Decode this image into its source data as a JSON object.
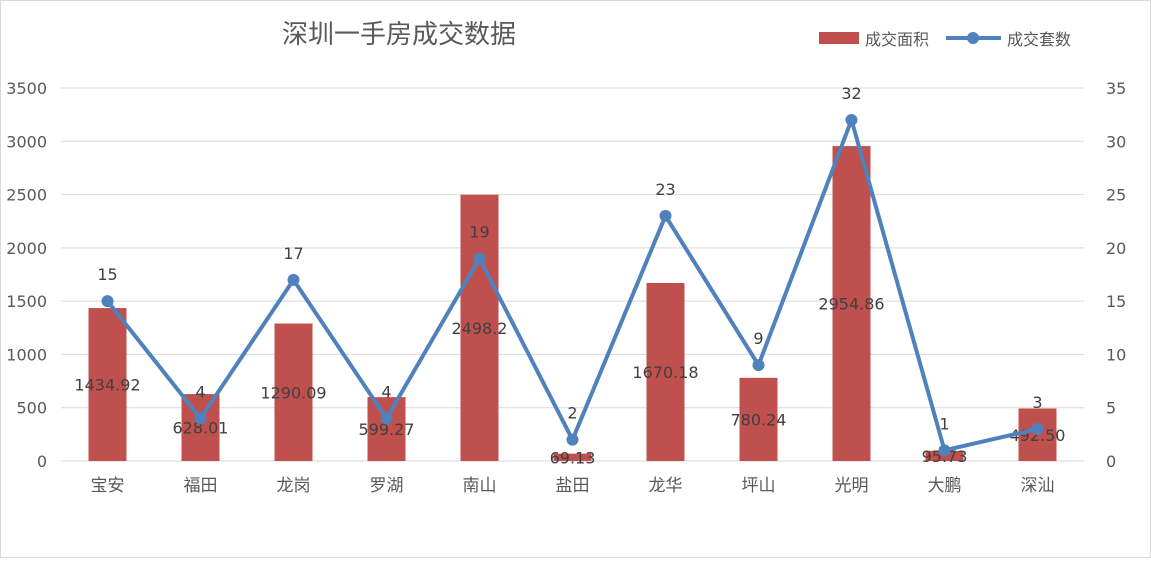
{
  "chart_data": {
    "type": "bar",
    "title": "深圳一手房成交数据",
    "categories": [
      "宝安",
      "福田",
      "龙岗",
      "罗湖",
      "南山",
      "盐田",
      "龙华",
      "坪山",
      "光明",
      "大鹏",
      "深汕"
    ],
    "series": [
      {
        "name": "成交面积",
        "type": "bar",
        "axis": "left",
        "color": "#c0504d",
        "values": [
          1434.92,
          628.01,
          1290.09,
          599.27,
          2498.2,
          69.13,
          1670.18,
          780.24,
          2954.86,
          95.73,
          492.5
        ],
        "labels": [
          "1434.92",
          "628.01",
          "1290.09",
          "599.27",
          "2498.2",
          "69.13",
          "1670.18",
          "780.24",
          "2954.86",
          "95.73",
          "492.50"
        ]
      },
      {
        "name": "成交套数",
        "type": "line",
        "axis": "right",
        "color": "#4f81bd",
        "values": [
          15,
          4,
          17,
          4,
          19,
          2,
          23,
          9,
          32,
          1,
          3
        ],
        "labels": [
          "15",
          "4",
          "17",
          "4",
          "19",
          "2",
          "23",
          "9",
          "32",
          "1",
          "3"
        ]
      }
    ],
    "y_left": {
      "min": 0,
      "max": 3500,
      "ticks": [
        "0",
        "500",
        "1000",
        "1500",
        "2000",
        "2500",
        "3000",
        "3500"
      ]
    },
    "y_right": {
      "min": 0,
      "max": 35,
      "ticks": [
        "0",
        "5",
        "10",
        "15",
        "20",
        "25",
        "30",
        "35"
      ]
    },
    "grid": true,
    "legend_position": "top-right"
  }
}
